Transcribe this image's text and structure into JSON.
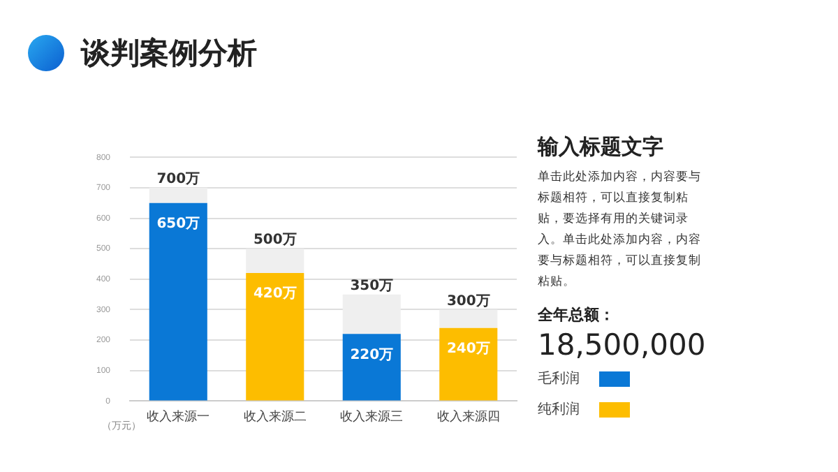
{
  "chart_data": {
    "type": "bar",
    "title": "谈判案例分析",
    "ylabel": "（万元）",
    "categories": [
      "收入来源一",
      "收入来源二",
      "收入来源三",
      "收入来源四"
    ],
    "series": [
      {
        "name": "毛利润",
        "color": "#0a78d6",
        "values": [
          650,
          null,
          220,
          null
        ],
        "value_labels": [
          "650万",
          null,
          "220万",
          null
        ]
      },
      {
        "name": "纯利润",
        "color": "#fdbd00",
        "values": [
          null,
          420,
          null,
          240
        ],
        "value_labels": [
          null,
          "420万",
          null,
          "240万"
        ]
      },
      {
        "color": "#efefef",
        "values": [
          50,
          80,
          130,
          60
        ]
      }
    ],
    "stacked": true,
    "totals": [
      "700万",
      "500万",
      "350万",
      "300万"
    ],
    "ylim": [
      0,
      800
    ],
    "yticks": [
      0,
      100,
      200,
      300,
      400,
      500,
      600,
      700,
      800
    ],
    "grid": "y",
    "legend": "right",
    "annotations": [
      "输入标题文字",
      "单击此处添加内容，内容要与标题相符，可以直接复制粘贴，要选择有用的关键词录入。单击此处添加内容，内容要与标题相符，可以直接复制粘贴。",
      "全年总额：",
      "18,500,000"
    ]
  }
}
